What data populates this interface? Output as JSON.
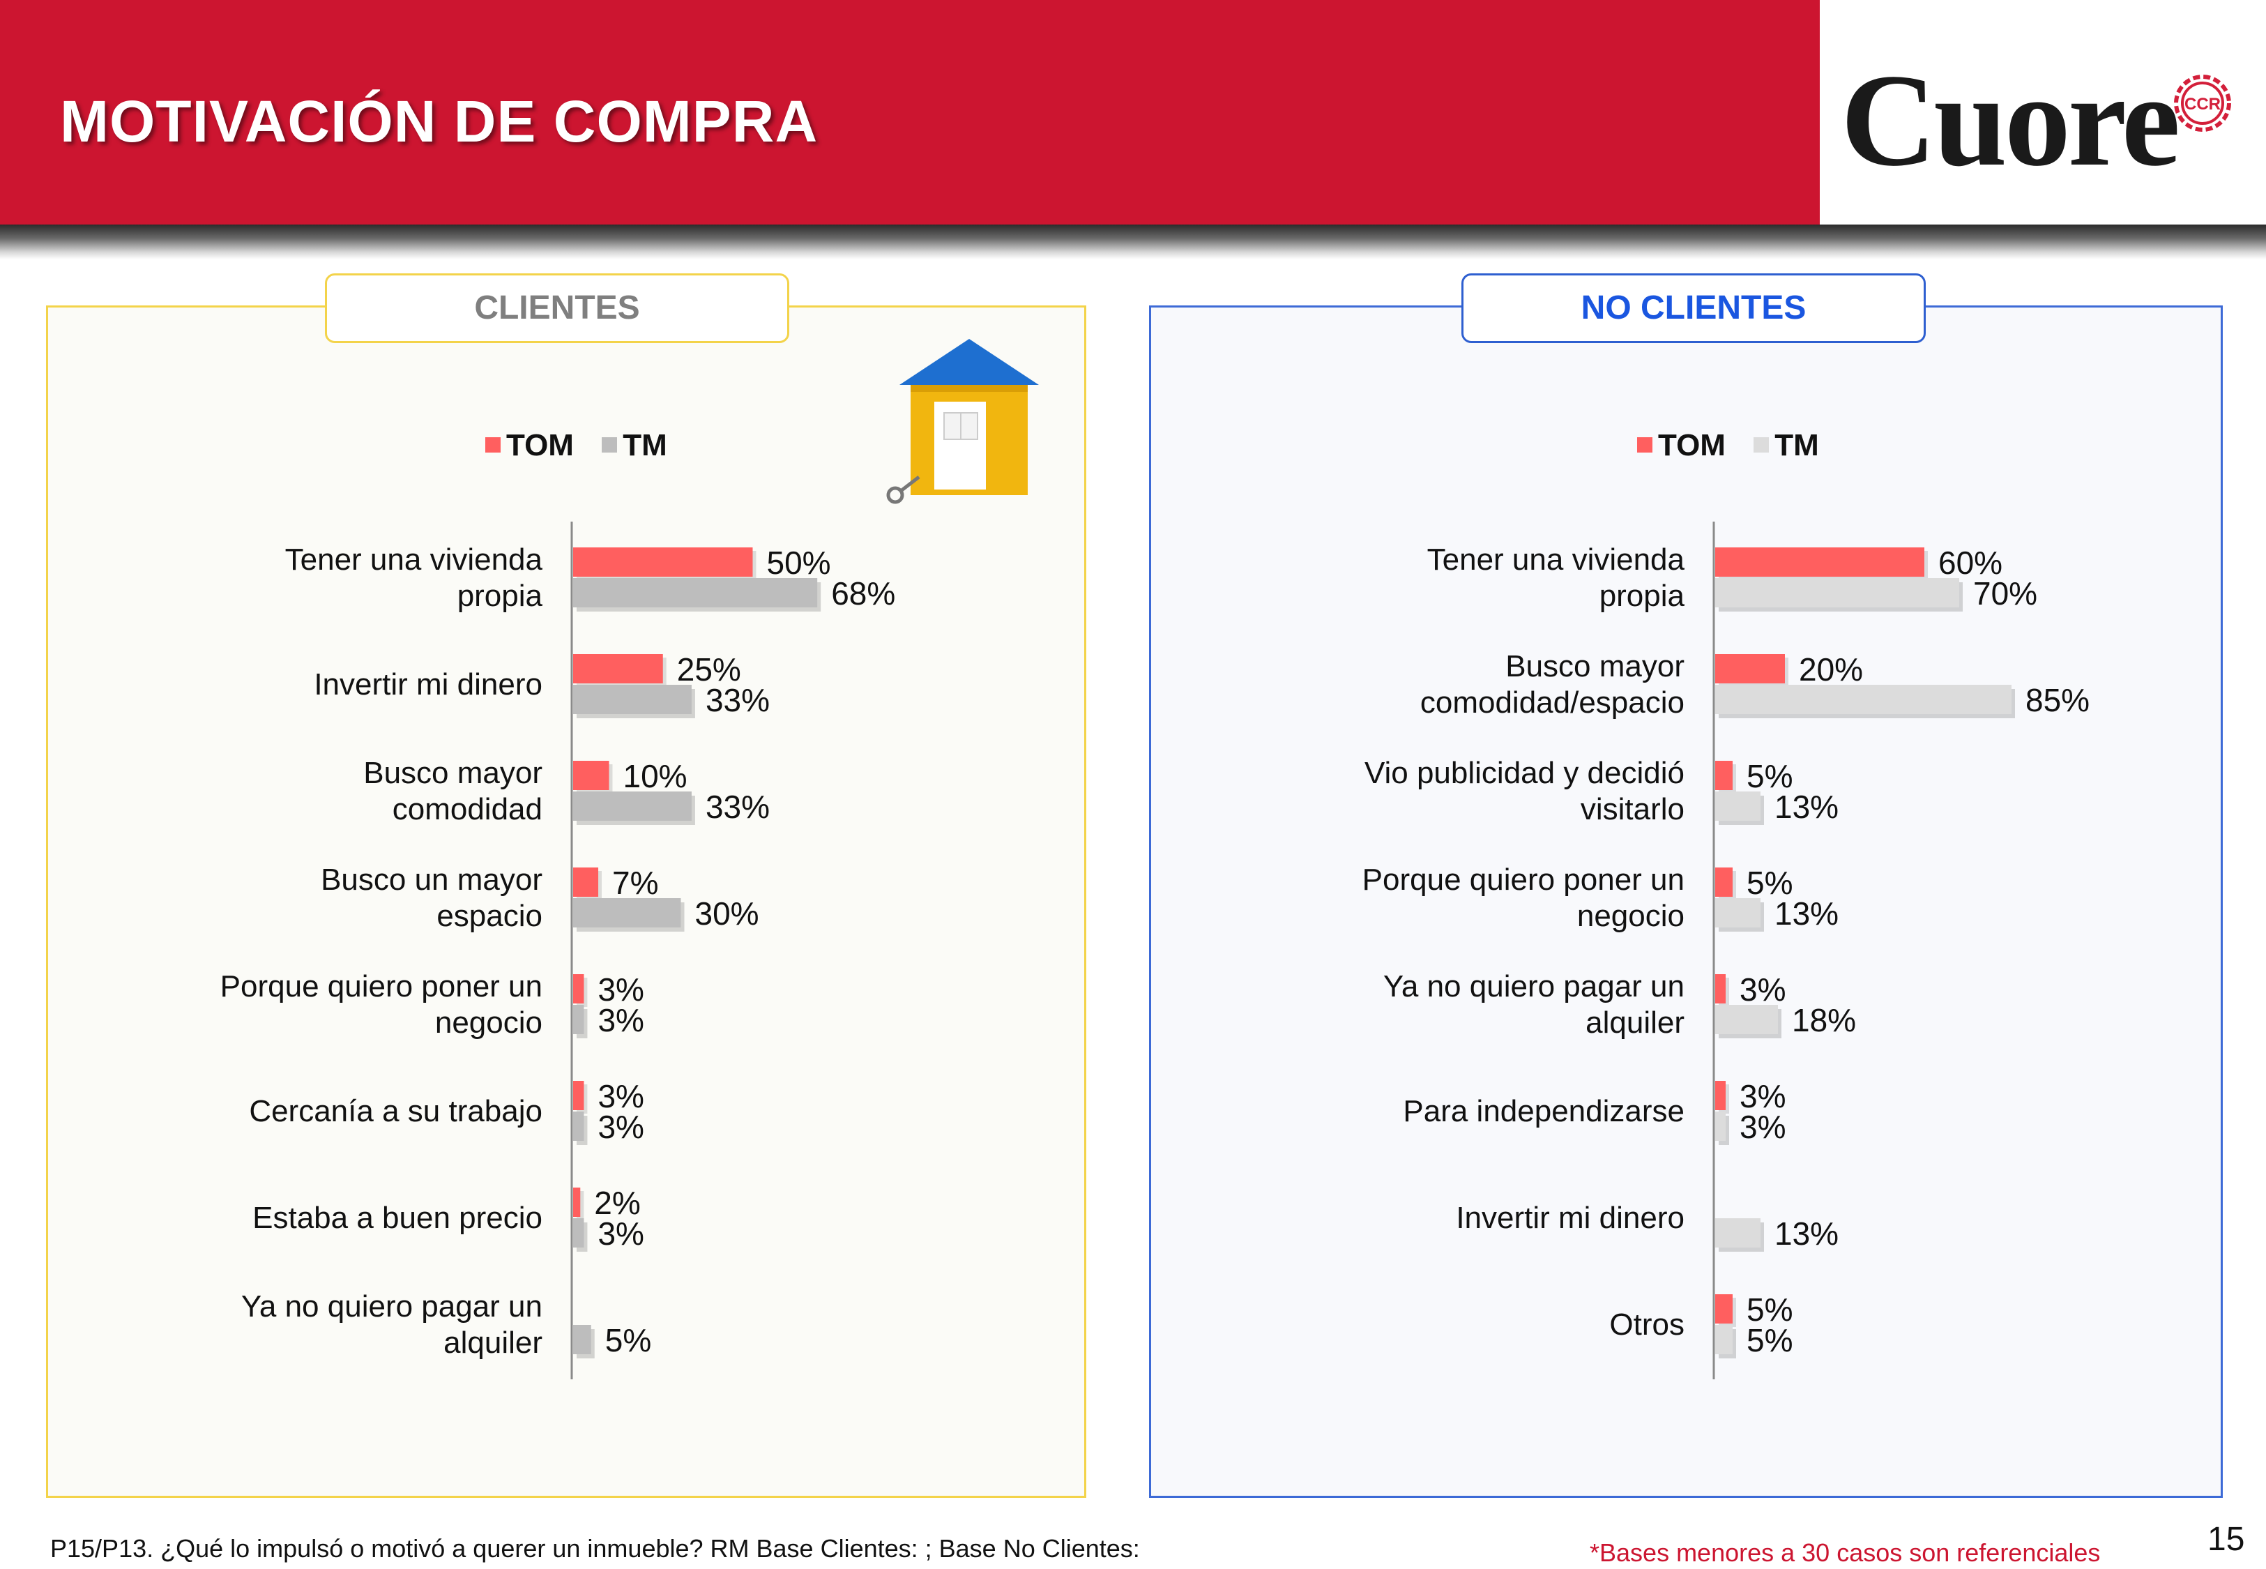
{
  "header": {
    "title": "MOTIVACIÓN DE COMPRA",
    "logo_text": "Cuore",
    "logo_badge": "CCR"
  },
  "panels": {
    "left": {
      "title": "CLIENTES"
    },
    "right": {
      "title": "NO CLIENTES"
    }
  },
  "legend": {
    "tom": "TOM",
    "tm": "TM"
  },
  "colors": {
    "tom": "#ff5f5f",
    "tm_left": "#bdbdbd",
    "tm_right": "#dcdcdc",
    "header": "#cc1530"
  },
  "chart_data": [
    {
      "type": "bar",
      "title": "CLIENTES",
      "categories": [
        "Tener una vivienda\npropia",
        "Invertir mi dinero",
        "Busco mayor\ncomodidad",
        "Busco un mayor\nespacio",
        "Porque quiero poner un\nnegocio",
        "Cercanía a su trabajo",
        "Estaba a buen precio",
        "Ya no quiero pagar un\nalquiler"
      ],
      "series": [
        {
          "name": "TOM",
          "values": [
            50,
            25,
            10,
            7,
            3,
            3,
            2,
            null
          ],
          "labels": [
            "50%",
            "25%",
            "10%",
            "7%",
            "3%",
            "3%",
            "2%",
            ""
          ]
        },
        {
          "name": "TM",
          "values": [
            68,
            33,
            33,
            30,
            3,
            3,
            3,
            5
          ],
          "labels": [
            "68%",
            "33%",
            "33%",
            "30%",
            "3%",
            "3%",
            "3%",
            "5%"
          ]
        }
      ]
    },
    {
      "type": "bar",
      "title": "NO CLIENTES",
      "categories": [
        "Tener una vivienda\npropia",
        "Busco mayor\ncomodidad/espacio",
        "Vio publicidad y decidió\nvisitarlo",
        "Porque quiero poner un\nnegocio",
        "Ya no quiero pagar un\nalquiler",
        "Para independizarse",
        "Invertir mi dinero",
        "Otros"
      ],
      "series": [
        {
          "name": "TOM",
          "values": [
            60,
            20,
            5,
            5,
            3,
            3,
            null,
            5
          ],
          "labels": [
            "60%",
            "20%",
            "5%",
            "5%",
            "3%",
            "3%",
            "",
            "5%"
          ]
        },
        {
          "name": "TM",
          "values": [
            70,
            85,
            13,
            13,
            18,
            3,
            13,
            5
          ],
          "labels": [
            "70%",
            "85%",
            "13%",
            "13%",
            "18%",
            "3%",
            "13%",
            "5%"
          ]
        }
      ]
    }
  ],
  "footer": {
    "question": "P15/P13.  ¿Qué lo impulsó o motivó a querer un inmueble?  RM      Base Clientes:   ; Base No Clientes:",
    "note": "*Bases menores a 30 casos son referenciales",
    "page": "15"
  }
}
